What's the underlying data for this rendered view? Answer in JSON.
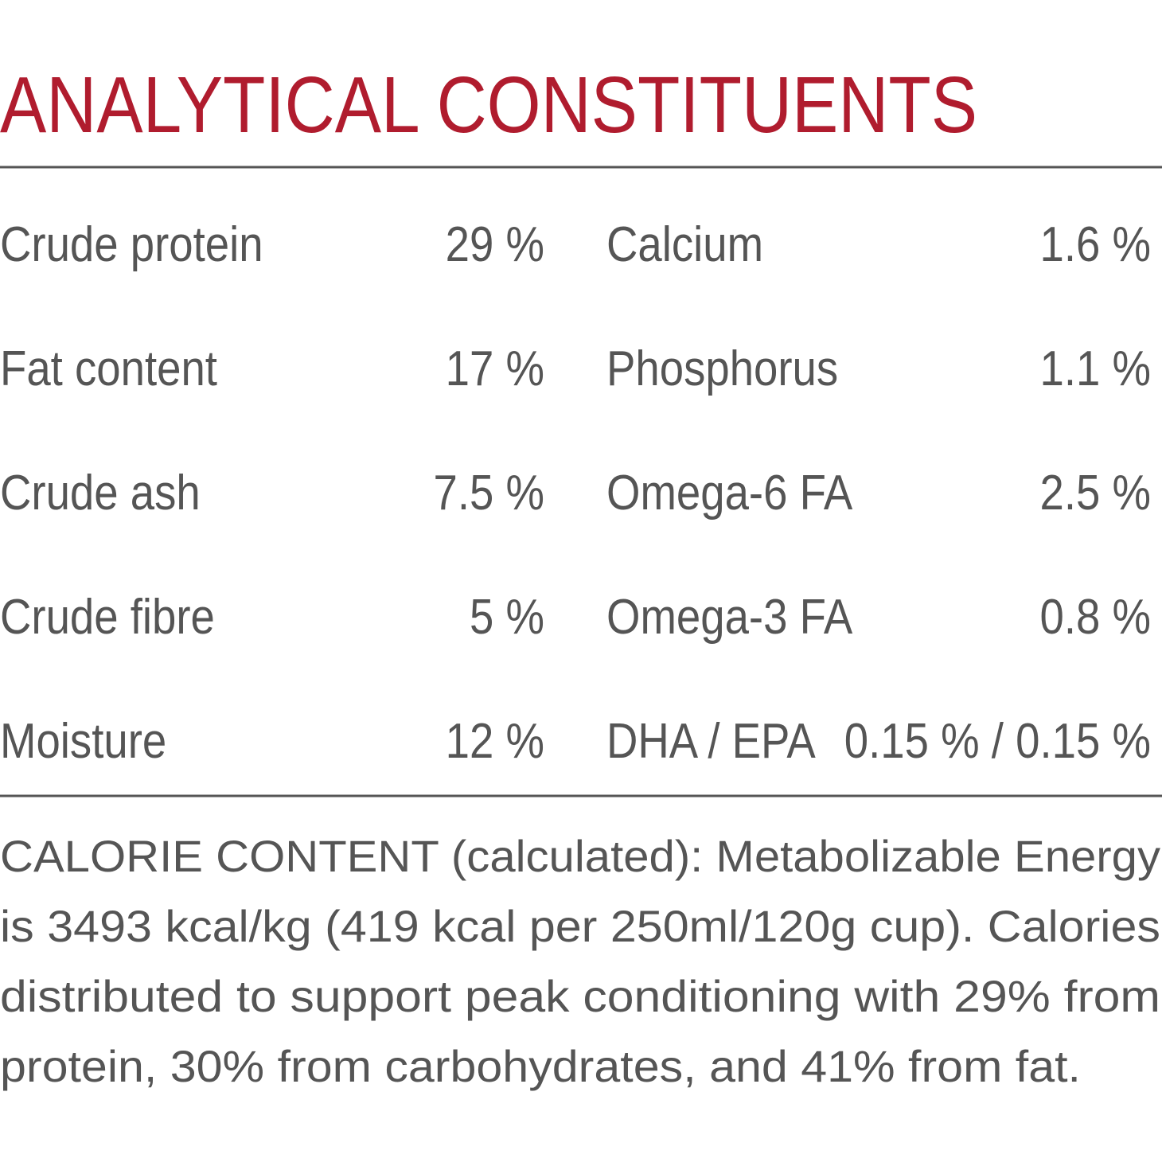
{
  "header": {
    "title": "ANALYTICAL CONSTITUENTS"
  },
  "table": {
    "rows": [
      [
        "Crude protein",
        "29 %",
        "Calcium",
        "1.6 %"
      ],
      [
        "Fat content",
        "17 %",
        "Phosphorus",
        "1.1 %"
      ],
      [
        "Crude ash",
        "7.5 %",
        "Omega-6 FA",
        "2.5 %"
      ],
      [
        "Crude fibre",
        "5 %",
        "Omega-3 FA",
        "0.8 %"
      ],
      [
        "Moisture",
        "12 %",
        "DHA / EPA",
        "0.15 % / 0.15 %"
      ]
    ]
  },
  "calorie": {
    "lines": [
      "CALORIE CONTENT (calculated): Metabolizable Energy",
      "is 3493 kcal/kg (419 kcal per 250ml/120g cup). Calories",
      "distributed to support peak conditioning with 29% from",
      "protein, 30% from carbohydrates, and 41% from fat."
    ]
  }
}
